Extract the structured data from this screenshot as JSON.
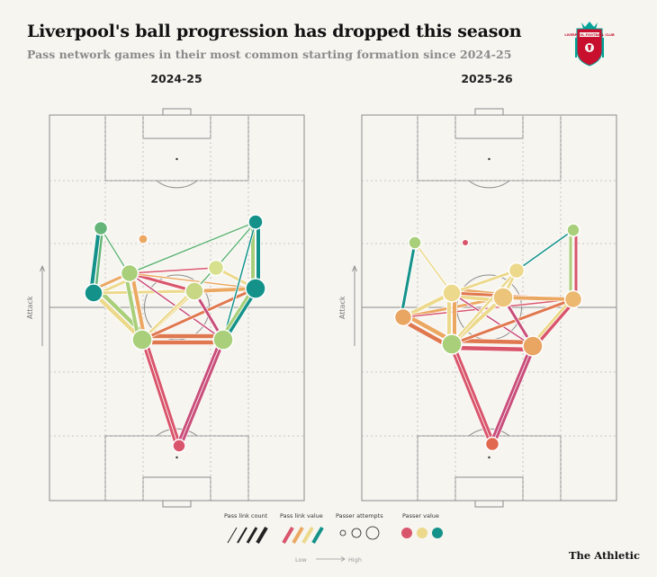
{
  "header": {
    "title": "Liverpool's ball progression has dropped this season",
    "subtitle": "Pass network games in their most common starting formation since 2024-25"
  },
  "logo": {
    "name": "liverpool-crest",
    "text": "LIVERPOOL FOOTBALL CLUB"
  },
  "pitches": [
    {
      "title": "2024-25",
      "attack_label": "Attack"
    },
    {
      "title": "2025-26",
      "attack_label": "Attack"
    }
  ],
  "legend": {
    "pass_link_count": "Pass link count",
    "pass_link_value": "Pass link value",
    "passer_attempts": "Passer attempts",
    "passer_value": "Passer value",
    "low": "Low",
    "high": "High"
  },
  "colors": {
    "low": "#d9556b",
    "mid_low": "#eba863",
    "mid": "#ecd98c",
    "mid_high": "#a9cf7a",
    "high": "#14928a",
    "pitch_line": "#8b8b8b",
    "background": "#f6f5f0"
  },
  "brand": "The Athletic"
}
